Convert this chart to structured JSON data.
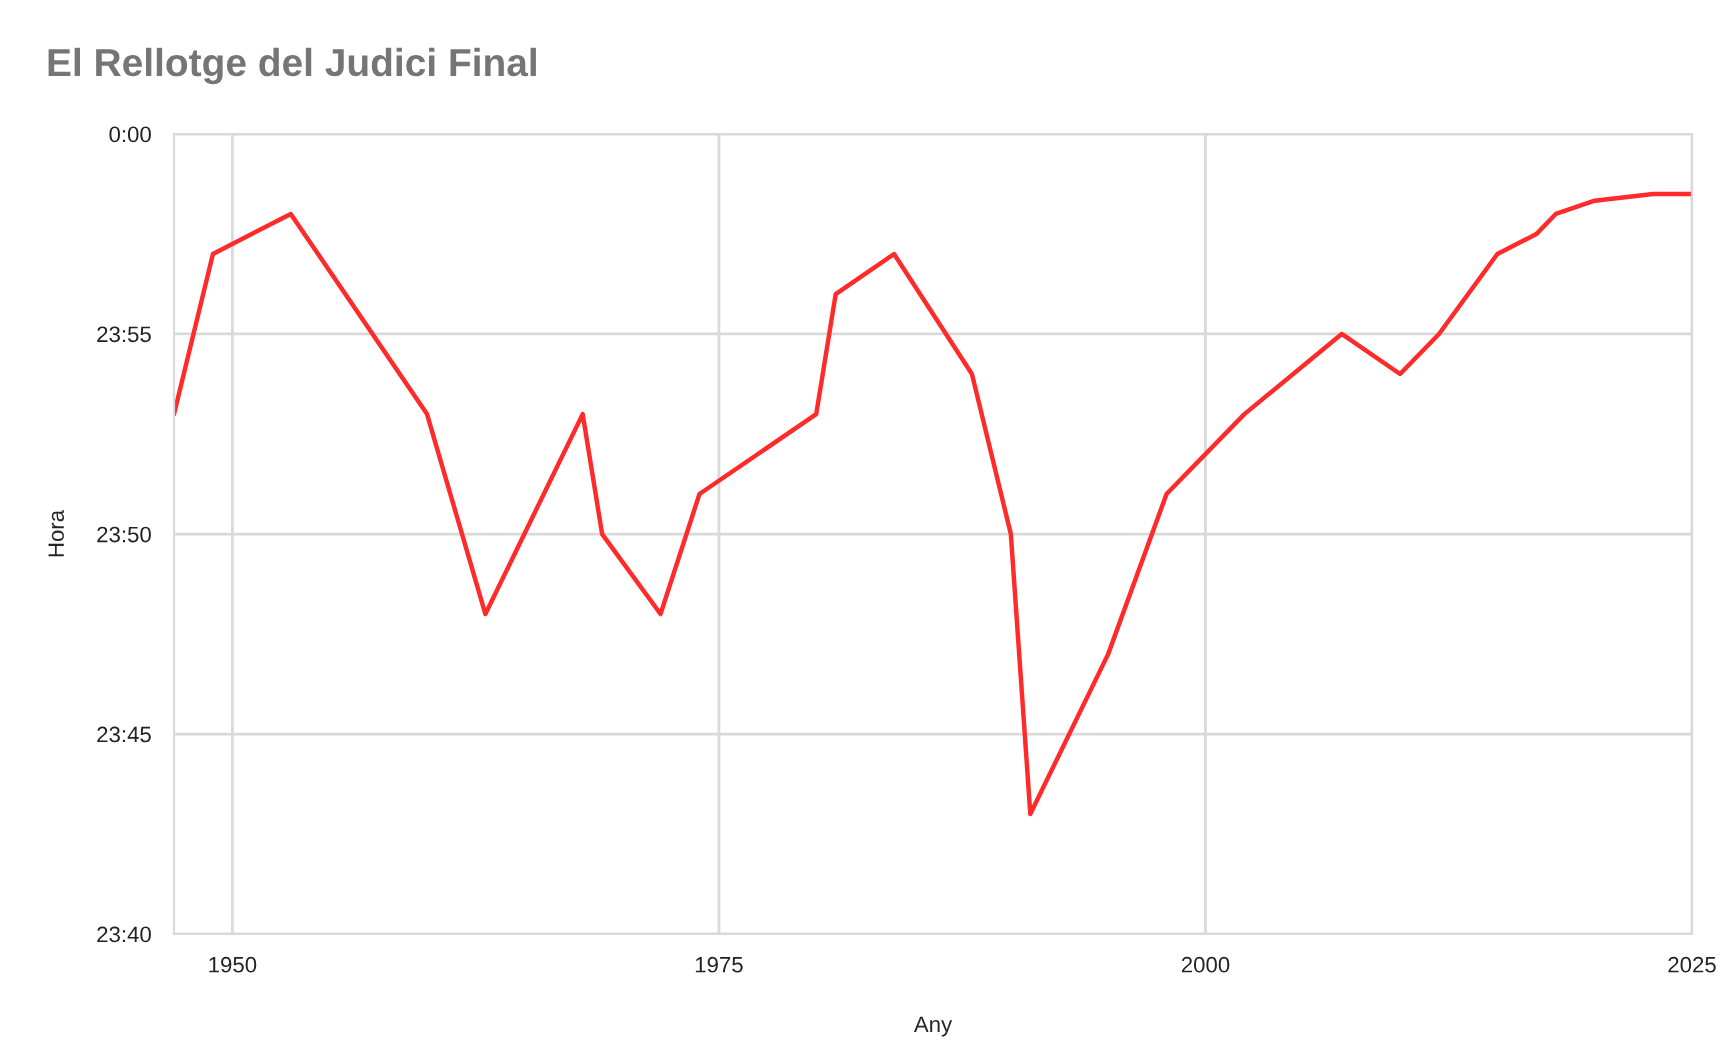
{
  "chart_data": {
    "type": "line",
    "title": "El Rellotge del Judici Final",
    "xlabel": "Any",
    "ylabel": "Hora",
    "x": [
      1947,
      1949,
      1953,
      1960,
      1963,
      1968,
      1969,
      1972,
      1974,
      1980,
      1981,
      1984,
      1988,
      1990,
      1991,
      1995,
      1998,
      2002,
      2007,
      2010,
      2012,
      2015,
      2017,
      2018,
      2020,
      2023,
      2024,
      2025
    ],
    "series": [
      {
        "color": "#ff2a2a",
        "values": [
          23.8833,
          23.95,
          23.9667,
          23.8833,
          23.8,
          23.8833,
          23.8333,
          23.8,
          23.85,
          23.8833,
          23.9333,
          23.95,
          23.9,
          23.8333,
          23.7167,
          23.7833,
          23.85,
          23.8833,
          23.9167,
          23.9,
          23.9167,
          23.95,
          23.9583,
          23.9667,
          23.9722,
          23.975,
          23.975,
          23.975
        ]
      }
    ],
    "xlim": [
      1947,
      2025
    ],
    "xticks": [
      1950,
      1975,
      2000,
      2025
    ],
    "ylim": [
      23.6667,
      24
    ],
    "yticks": [
      {
        "value": 23.6667,
        "label": "23:40"
      },
      {
        "value": 23.75,
        "label": "23:45"
      },
      {
        "value": 23.8333,
        "label": "23:50"
      },
      {
        "value": 23.9167,
        "label": "23:55"
      },
      {
        "value": 24,
        "label": "0:00"
      }
    ],
    "grid": true,
    "marker": "none",
    "line_style": "solid"
  }
}
